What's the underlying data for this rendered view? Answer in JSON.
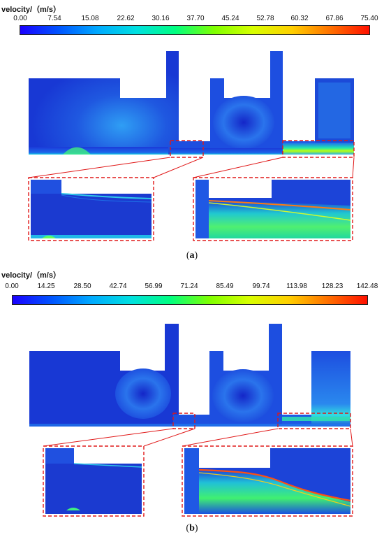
{
  "panel_a": {
    "colorbar_title": "velocity/（m/s）",
    "ticks": [
      "0.00",
      "7.54",
      "15.08",
      "22.62",
      "30.16",
      "37.70",
      "45.24",
      "52.78",
      "60.32",
      "67.86",
      "75.40"
    ],
    "caption_open": "(",
    "caption_letter": "a",
    "caption_close": ")"
  },
  "panel_b": {
    "colorbar_title": "velocity/（m/s）",
    "ticks": [
      "0.00",
      "14.25",
      "28.50",
      "42.74",
      "56.99",
      "71.24",
      "85.49",
      "99.74",
      "113.98",
      "128.23",
      "142.48"
    ],
    "caption_open": "(",
    "caption_letter": "b",
    "caption_close": ")"
  },
  "colors": {
    "colormap": [
      "#1a00ff",
      "#0055ff",
      "#00aaff",
      "#00e0e0",
      "#00ff80",
      "#7fff00",
      "#d8ff00",
      "#ffd000",
      "#ff7000",
      "#ff1000"
    ],
    "field_base": "#1b3ad8",
    "field_light": "#2a8ef0",
    "callout": "#e01818"
  }
}
